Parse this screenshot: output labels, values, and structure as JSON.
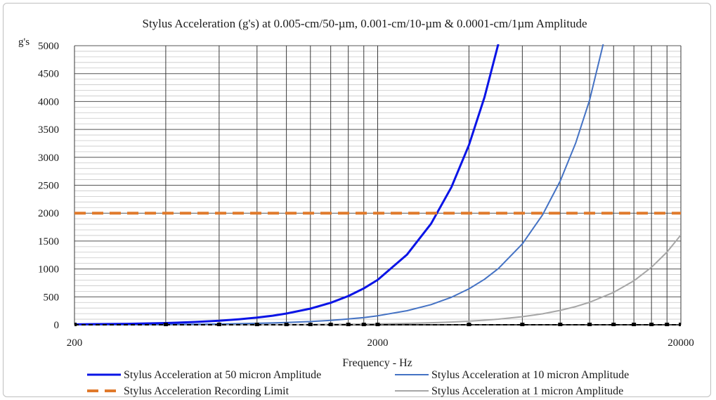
{
  "chart_data": {
    "type": "line",
    "title": "Stylus Acceleration (g's) at 0.005-cm/50-µm,  0.001-cm/10-µm & 0.0001-cm/1µm  Amplitude",
    "ylabel": "g's",
    "xlabel": "Frequency - Hz",
    "x_scale": "log",
    "xlim": [
      200,
      20000
    ],
    "ylim": [
      0,
      5000
    ],
    "x_ticks": [
      "200",
      "2000",
      "20000"
    ],
    "y_ticks": [
      "0",
      "500",
      "1000",
      "1500",
      "2000",
      "2500",
      "3000",
      "3500",
      "4000",
      "4500",
      "5000"
    ],
    "grid": true,
    "legend_position": "bottom",
    "series": [
      {
        "name": "Stylus Acceleration at 50 micron Amplitude",
        "color": "#0a14e6",
        "style": "solid-thick",
        "x": [
          200,
          300,
          400,
          500,
          600,
          700,
          800,
          900,
          1000,
          1200,
          1400,
          1600,
          1800,
          2000,
          2500,
          3000,
          3500,
          4000,
          4500,
          5000,
          6000,
          7000,
          8000,
          9000,
          10000,
          12000,
          14000,
          16000,
          18000,
          20000
        ],
        "values": [
          8,
          18,
          32,
          50,
          72,
          99,
          129,
          163,
          201,
          290,
          394,
          515,
          652,
          805,
          1258,
          1811,
          2465,
          3220,
          4075,
          5031,
          null,
          null,
          null,
          null,
          null,
          null,
          null,
          null,
          null,
          null
        ]
      },
      {
        "name": "Stylus Acceleration at 10 micron Amplitude",
        "color": "#4472c4",
        "style": "solid",
        "x": [
          200,
          300,
          400,
          500,
          600,
          700,
          800,
          900,
          1000,
          1200,
          1400,
          1600,
          1800,
          2000,
          2500,
          3000,
          3500,
          4000,
          4500,
          5000,
          6000,
          7000,
          8000,
          9000,
          10000,
          12000,
          14000,
          16000,
          18000,
          20000
        ],
        "values": [
          2,
          4,
          6,
          10,
          14,
          20,
          26,
          33,
          40,
          58,
          79,
          103,
          130,
          161,
          252,
          362,
          493,
          644,
          815,
          1006,
          1449,
          1972,
          2576,
          3260,
          4025,
          5796,
          null,
          null,
          null,
          null
        ]
      },
      {
        "name": "Stylus Acceleration Recording Limit",
        "color": "#e07a2c",
        "style": "dashed-thick",
        "x": [
          200,
          20000
        ],
        "values": [
          2000,
          2000
        ]
      },
      {
        "name": "Stylus Acceleration at 1 micron Amplitude",
        "color": "#a6a6a6",
        "style": "solid",
        "x": [
          200,
          300,
          400,
          500,
          600,
          700,
          800,
          900,
          1000,
          1200,
          1400,
          1600,
          1800,
          2000,
          2500,
          3000,
          3500,
          4000,
          4500,
          5000,
          6000,
          7000,
          8000,
          9000,
          10000,
          12000,
          14000,
          16000,
          18000,
          20000
        ],
        "values": [
          0,
          0,
          1,
          1,
          1,
          2,
          3,
          3,
          4,
          6,
          8,
          10,
          13,
          16,
          25,
          36,
          49,
          64,
          82,
          101,
          145,
          197,
          258,
          326,
          403,
          580,
          789,
          1030,
          1304,
          1610
        ]
      },
      {
        "name": "",
        "color": "#000000",
        "style": "dashed-markers",
        "x": [
          200,
          20000
        ],
        "values": [
          0,
          0
        ]
      }
    ]
  }
}
